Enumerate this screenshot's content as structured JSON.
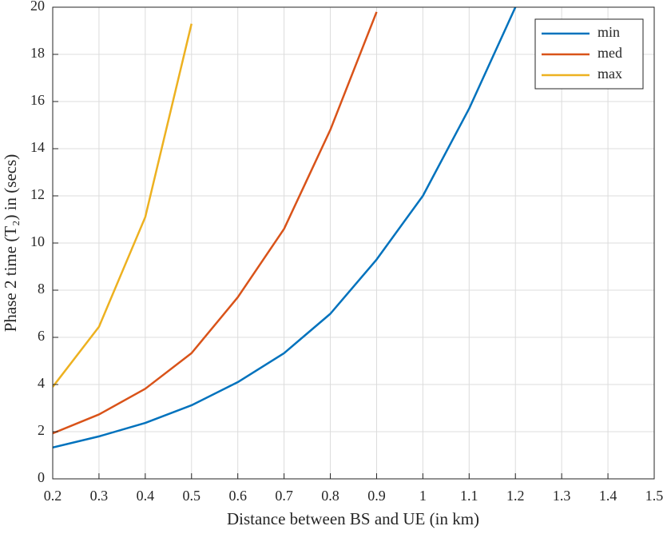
{
  "chart_data": {
    "type": "line",
    "x": [
      0.2,
      0.3,
      0.4,
      0.5,
      0.6,
      0.7,
      0.8,
      0.9,
      1.0,
      1.1,
      1.2
    ],
    "series": [
      {
        "name": "min",
        "color": "#0072BD",
        "values": [
          1.33,
          1.8,
          2.37,
          3.12,
          4.1,
          5.33,
          7.0,
          9.3,
          12.0,
          15.7,
          20.0
        ]
      },
      {
        "name": "med",
        "color": "#D95319",
        "values": [
          1.93,
          2.73,
          3.82,
          5.33,
          7.7,
          10.6,
          14.8,
          19.8,
          null,
          null,
          null
        ]
      },
      {
        "name": "max",
        "color": "#EDB120",
        "values": [
          3.9,
          6.45,
          11.1,
          19.3,
          null,
          null,
          null,
          null,
          null,
          null,
          null
        ]
      }
    ],
    "xlabel": "Distance between BS and UE (in km)",
    "ylabel": "Phase 2 time (T₂) in (secs)",
    "xlim": [
      0.2,
      1.5
    ],
    "ylim": [
      0,
      20
    ],
    "xticks": [
      0.2,
      0.3,
      0.4,
      0.5,
      0.6,
      0.7,
      0.8,
      0.9,
      1,
      1.1,
      1.2,
      1.3,
      1.4,
      1.5
    ],
    "yticks": [
      0,
      2,
      4,
      6,
      8,
      10,
      12,
      14,
      16,
      18,
      20
    ],
    "grid": true,
    "legend": "northeast"
  }
}
